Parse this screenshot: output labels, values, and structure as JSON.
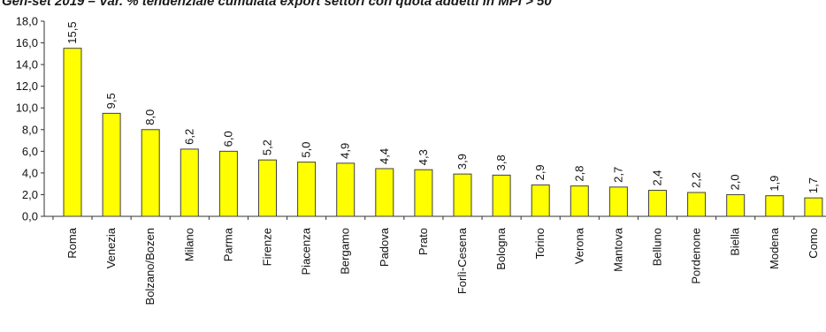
{
  "chart_data": {
    "type": "bar",
    "title": "Gen-set 2019 – Var. % tendenziale cumulata export settori con quota addetti in MPI > 50",
    "categories": [
      "Roma",
      "Venezia",
      "Bolzano/Bozen",
      "Milano",
      "Parma",
      "Firenze",
      "Piacenza",
      "Bergamo",
      "Padova",
      "Prato",
      "Forlì-Cesena",
      "Bologna",
      "Torino",
      "Verona",
      "Mantova",
      "Belluno",
      "Pordenone",
      "Biella",
      "Modena",
      "Como"
    ],
    "values": [
      15.5,
      9.5,
      8.0,
      6.2,
      6.0,
      5.2,
      5.0,
      4.9,
      4.4,
      4.3,
      3.9,
      3.8,
      2.9,
      2.8,
      2.7,
      2.4,
      2.2,
      2.0,
      1.9,
      1.7
    ],
    "value_labels": [
      "15,5",
      "9,5",
      "8,0",
      "6,2",
      "6,0",
      "5,2",
      "5,0",
      "4,9",
      "4,4",
      "4,3",
      "3,9",
      "3,8",
      "2,9",
      "2,8",
      "2,7",
      "2,4",
      "2,2",
      "2,0",
      "1,9",
      "1,7"
    ],
    "ylim": [
      0,
      18
    ],
    "yticks": [
      "0,0",
      "2,0",
      "4,0",
      "6,0",
      "8,0",
      "10,0",
      "12,0",
      "14,0",
      "16,0",
      "18,0"
    ],
    "xlabel": "",
    "ylabel": "",
    "grid": false,
    "bar_color": "#ffff00",
    "bar_edge_color": "#404040"
  }
}
